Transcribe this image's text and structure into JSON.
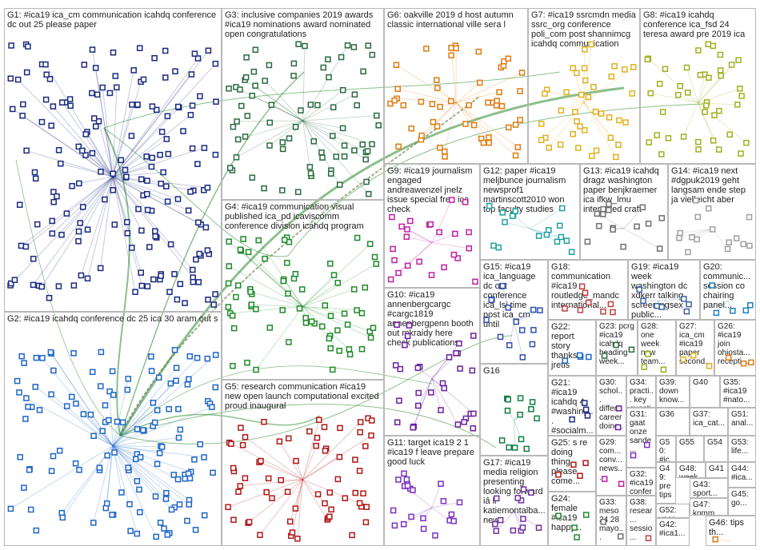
{
  "groups": [
    "G1: #ica19 ica_cm communication icahdq conference dc out 25 please paper",
    "G2: #ica19 icahdq conference dc 25 ica 30 aram out s",
    "G3: inclusive companies 2019 awards #ica19 nominations award nominated open congratulations",
    "G4: #ica19 communication visual published ica_pd icaviscomm conference division icahdq program",
    "G5: research communication #ica19 new open launch computational excited proud inaugural",
    "G6: oakville 2019 d host autumn classic international ville sera l",
    "G7: #ica19 ssrcmdn media ssrc_org conference poli_com post shannimcg icahdq communication",
    "G8: #ica19 icahdq conference ica_fsd 24 teresa award pre 2019 ica",
    "G9: #ica19 journalism engaged andreawenzel jnelz issue special free ica check",
    "G10: #ica19 annenbergcargc #cargc1819 annenbergpenn booth out mkraidy here check publications",
    "G11: target ica19 2 1 #ica19 f leave prepare good luck",
    "G12: paper #ica19 meljbunce journalism newsprof1 martinscott2010 won top faculty studies",
    "G13: #ica19 icahdq dragz washington paper benjkraemer ica ifkw_lmu interested craft",
    "G14: #ica19 next #dgpuk2019 geht langsam ende step ja vielleicht aber",
    "G15: #ica19 ica_language dc out conference ica_lsi time post ica_cm until",
    "G16",
    "G17: #ica19 media religion presenting looking forward iâ ll katiemontalba... new",
    "G18: communication #ica19 routledge_mandc international...",
    "G19: #ica19 week washington dc xdkerr talking screeningsex public...",
    "G20: communic... session co chairing panel...",
    "G21: #ica19 icahdq 4 #washing... #socialm...",
    "G22: report story thanks jretis",
    "G23: pcrg #ica19 icahdq heading week...",
    "G24: female #ica19 happy...",
    "G25: s re doing thing please come...",
    "G26: #ica19 join ohiosta... recepti...",
    "G27: ica_cm #ica19 paper second...",
    "G28: one week now team...",
    "G29: com... conv... news...",
    "G30: schol... differ... career doing...",
    "G31: gaat onze sande...",
    "G32: #ica19 confer... progr...",
    "G33: meso 24 28 mayo...",
    "G34: practi... key questi...",
    "G35: #ica19 #nato...",
    "G36",
    "G37: ica_cat...",
    "G38: resear... sessio...",
    "G39: down know...",
    "G40",
    "G41",
    "G42: #ica1...",
    "G43: sport...",
    "G44: #ica...",
    "G45: go...",
    "G46: tips th...",
    "G47: komm...",
    "G48: week...",
    "G49: pre tips...",
    "G50: #ic...",
    "G51: anal...",
    "G52: year go...",
    "G53: life...",
    "G54",
    "G55"
  ]
}
